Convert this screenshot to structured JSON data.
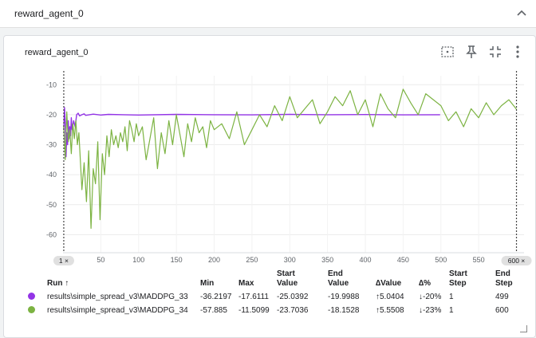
{
  "section": {
    "title": "reward_agent_0"
  },
  "card": {
    "title": "reward_agent_0"
  },
  "icons": [
    "fit-domain-icon",
    "pin-icon",
    "collapse-icon",
    "more-vert-icon"
  ],
  "chart_data": {
    "type": "line",
    "xlim": [
      0,
      610
    ],
    "ylim": [
      -66,
      -7
    ],
    "x_ticks": [
      "50",
      "100",
      "150",
      "200",
      "250",
      "300",
      "350",
      "400",
      "450",
      "500",
      "550"
    ],
    "x_tick_values": [
      50,
      100,
      150,
      200,
      250,
      300,
      350,
      400,
      450,
      500,
      550
    ],
    "y_ticks": [
      "-10",
      "-20",
      "-30",
      "-40",
      "-50",
      "-60"
    ],
    "y_tick_values": [
      -10,
      -20,
      -30,
      -40,
      -50,
      -60
    ],
    "range_markers": [
      {
        "x": 1,
        "label": "1 ×"
      },
      {
        "x": 600,
        "label": "600 ×"
      }
    ],
    "series": [
      {
        "name": "results\\simple_spread_v3\\MADDPG_33",
        "color": "#9334e6",
        "x": [
          1,
          2,
          3,
          4,
          5,
          6,
          7,
          8,
          9,
          10,
          11,
          12,
          14,
          16,
          18,
          20,
          22,
          25,
          28,
          30,
          35,
          40,
          50,
          60,
          80,
          100,
          150,
          200,
          250,
          300,
          350,
          400,
          450,
          499
        ],
        "y": [
          -25.04,
          -17.6,
          -23,
          -34,
          -26,
          -30,
          -22,
          -28,
          -24,
          -27,
          -21,
          -25,
          -22,
          -24,
          -20,
          -19.5,
          -20.4,
          -20,
          -19.7,
          -20.2,
          -20,
          -19.8,
          -20.1,
          -19.9,
          -20,
          -20.1,
          -19.9,
          -20,
          -20.05,
          -19.9,
          -20,
          -19.95,
          -20.05,
          -20.0
        ]
      },
      {
        "name": "results\\simple_spread_v3\\MADDPG_34",
        "color": "#7cb342",
        "x": [
          1,
          3,
          5,
          7,
          9,
          11,
          13,
          15,
          17,
          19,
          21,
          25,
          28,
          31,
          34,
          37,
          40,
          43,
          46,
          49,
          52,
          55,
          58,
          61,
          64,
          67,
          70,
          73,
          76,
          79,
          82,
          85,
          88,
          91,
          94,
          97,
          100,
          105,
          110,
          115,
          120,
          125,
          130,
          135,
          140,
          145,
          150,
          155,
          160,
          165,
          170,
          175,
          180,
          185,
          190,
          195,
          200,
          210,
          220,
          230,
          240,
          250,
          260,
          270,
          280,
          290,
          300,
          310,
          320,
          330,
          340,
          350,
          360,
          370,
          380,
          390,
          400,
          410,
          420,
          430,
          440,
          450,
          460,
          470,
          480,
          490,
          500,
          510,
          520,
          530,
          540,
          550,
          560,
          570,
          580,
          590,
          600
        ],
        "y": [
          -23.7,
          -35,
          -19,
          -29,
          -25,
          -33,
          -23,
          -28,
          -22,
          -30,
          -26,
          -45,
          -36,
          -49,
          -32,
          -57.9,
          -38,
          -43,
          -29,
          -55,
          -33,
          -40,
          -27,
          -34,
          -25,
          -30,
          -27,
          -31,
          -26,
          -29,
          -24,
          -32,
          -22,
          -25,
          -29,
          -23,
          -27,
          -24,
          -35,
          -28,
          -21,
          -38,
          -26,
          -33,
          -22,
          -30,
          -20,
          -27,
          -34,
          -23,
          -29,
          -21,
          -26,
          -24,
          -31,
          -22,
          -25,
          -23,
          -28,
          -19,
          -30,
          -25,
          -20,
          -24,
          -17,
          -22,
          -14,
          -21,
          -18,
          -15,
          -23,
          -19,
          -14,
          -17,
          -12,
          -20,
          -15,
          -24,
          -13,
          -18,
          -21,
          -11.5,
          -16,
          -20,
          -13,
          -15,
          -17,
          -22,
          -19,
          -24,
          -18,
          -21,
          -16,
          -20,
          -17,
          -15,
          -18.15
        ]
      }
    ]
  },
  "table": {
    "headers": {
      "run": "Run ↑",
      "min": "Min",
      "max": "Max",
      "start_value_1": "Start",
      "start_value_2": "Value",
      "end_value_1": "End",
      "end_value_2": "Value",
      "delta_value": "∆Value",
      "delta_pct": "∆%",
      "start_step_1": "Start",
      "start_step_2": "Step",
      "end_step_1": "End",
      "end_step_2": "Step"
    },
    "rows": [
      {
        "color": "#9334e6",
        "run": "results\\simple_spread_v3\\MADDPG_33",
        "min": "-36.2197",
        "max": "-17.6111",
        "start_value": "-25.0392",
        "end_value": "-19.9988",
        "delta_value": "↑5.0404",
        "delta_pct": "↓-20%",
        "start_step": "1",
        "end_step": "499"
      },
      {
        "color": "#7cb342",
        "run": "results\\simple_spread_v3\\MADDPG_34",
        "min": "-57.885",
        "max": "-11.5099",
        "start_value": "-23.7036",
        "end_value": "-18.1528",
        "delta_value": "↑5.5508",
        "delta_pct": "↓-23%",
        "start_step": "1",
        "end_step": "600"
      }
    ]
  }
}
